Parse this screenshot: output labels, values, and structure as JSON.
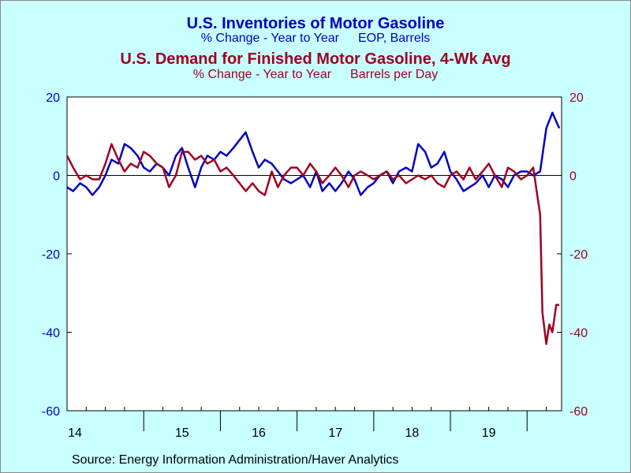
{
  "colors": {
    "background": "#C8FFFF",
    "plot_background": "#FFFFFF",
    "inventories": "#0000C0",
    "demand": "#A00020",
    "text": "#000000"
  },
  "titles": {
    "inventories_title": "U.S. Inventories of Motor Gasoline",
    "inventories_subtitle_a": "% Change - Year to Year",
    "inventories_subtitle_b": "EOP,  Barrels",
    "demand_title": "U.S. Demand for Finished Motor Gasoline, 4-Wk Avg",
    "demand_subtitle_a": "% Change - Year to Year",
    "demand_subtitle_b": "Barrels per Day"
  },
  "source": "Source:  Energy Information Administration/Haver Analytics",
  "chart_data": {
    "type": "line",
    "x_unit": "year",
    "xlim": [
      2014.0,
      2020.45
    ],
    "x_tick_labels": [
      "14",
      "15",
      "16",
      "17",
      "18",
      "19"
    ],
    "left_axis": {
      "ylim": [
        -60,
        20
      ],
      "ticks": [
        20,
        0,
        -20,
        -40,
        -60
      ],
      "tick_labels": [
        "20",
        "0",
        "-20",
        "-40",
        "-60"
      ]
    },
    "right_axis": {
      "ylim": [
        -60,
        20
      ],
      "ticks": [
        20,
        0,
        -20,
        -40,
        -60
      ],
      "tick_labels": [
        "20",
        "0",
        "-20",
        "-40",
        "-60"
      ]
    },
    "zero_line": true,
    "grid": false,
    "series": [
      {
        "axis": "left",
        "x": [
          2014.0,
          2014.08,
          2014.17,
          2014.25,
          2014.33,
          2014.42,
          2014.5,
          2014.58,
          2014.67,
          2014.75,
          2014.83,
          2014.92,
          2015.0,
          2015.08,
          2015.17,
          2015.25,
          2015.33,
          2015.42,
          2015.5,
          2015.58,
          2015.67,
          2015.75,
          2015.83,
          2015.92,
          2016.0,
          2016.08,
          2016.17,
          2016.25,
          2016.33,
          2016.42,
          2016.5,
          2016.58,
          2016.67,
          2016.75,
          2016.83,
          2016.92,
          2017.0,
          2017.08,
          2017.17,
          2017.25,
          2017.33,
          2017.42,
          2017.5,
          2017.58,
          2017.67,
          2017.75,
          2017.83,
          2017.92,
          2018.0,
          2018.08,
          2018.17,
          2018.25,
          2018.33,
          2018.42,
          2018.5,
          2018.58,
          2018.67,
          2018.75,
          2018.83,
          2018.92,
          2019.0,
          2019.08,
          2019.17,
          2019.25,
          2019.33,
          2019.42,
          2019.5,
          2019.58,
          2019.67,
          2019.75,
          2019.83,
          2019.92,
          2020.0,
          2020.08,
          2020.17,
          2020.25,
          2020.33,
          2020.42
        ],
        "values": [
          -3,
          -4,
          -2,
          -3,
          -5,
          -3,
          0,
          4,
          3,
          8,
          7,
          5,
          2,
          1,
          3,
          2,
          0,
          5,
          7,
          2,
          -3,
          2,
          5,
          4,
          6,
          5,
          7,
          9,
          11,
          6,
          2,
          4,
          3,
          1,
          -1,
          -2,
          -1,
          0,
          -3,
          1,
          -4,
          -2,
          -4,
          -2,
          1,
          -1,
          -5,
          -3,
          -2,
          0,
          1,
          -2,
          1,
          2,
          1,
          8,
          6,
          2,
          3,
          6,
          1,
          -1,
          -4,
          -3,
          -2,
          0,
          -3,
          0,
          -1,
          -3,
          0,
          1,
          1,
          0,
          1,
          12,
          16,
          12
        ]
      },
      {
        "axis": "right",
        "x": [
          2014.0,
          2014.08,
          2014.17,
          2014.25,
          2014.33,
          2014.42,
          2014.5,
          2014.58,
          2014.67,
          2014.75,
          2014.83,
          2014.92,
          2015.0,
          2015.08,
          2015.17,
          2015.25,
          2015.33,
          2015.42,
          2015.5,
          2015.58,
          2015.67,
          2015.75,
          2015.83,
          2015.92,
          2016.0,
          2016.08,
          2016.17,
          2016.25,
          2016.33,
          2016.42,
          2016.5,
          2016.58,
          2016.67,
          2016.75,
          2016.83,
          2016.92,
          2017.0,
          2017.08,
          2017.17,
          2017.25,
          2017.33,
          2017.42,
          2017.5,
          2017.58,
          2017.67,
          2017.75,
          2017.83,
          2017.92,
          2018.0,
          2018.08,
          2018.17,
          2018.25,
          2018.33,
          2018.42,
          2018.5,
          2018.58,
          2018.67,
          2018.75,
          2018.83,
          2018.92,
          2019.0,
          2019.08,
          2019.17,
          2019.25,
          2019.33,
          2019.42,
          2019.5,
          2019.58,
          2019.67,
          2019.75,
          2019.83,
          2019.92,
          2020.0,
          2020.08,
          2020.17,
          2020.2,
          2020.25,
          2020.29,
          2020.33,
          2020.38,
          2020.42
        ],
        "values": [
          5,
          2,
          -1,
          0,
          -1,
          -1,
          3,
          8,
          4,
          1,
          3,
          2,
          6,
          5,
          3,
          2,
          -3,
          0,
          6,
          6,
          4,
          5,
          3,
          4,
          1,
          2,
          0,
          -2,
          -4,
          -2,
          -4,
          -5,
          1,
          -3,
          0,
          2,
          2,
          0,
          3,
          1,
          -2,
          0,
          2,
          0,
          -3,
          0,
          1,
          0,
          -1,
          0,
          1,
          -1,
          0,
          -2,
          -1,
          0,
          -1,
          0,
          -2,
          -3,
          0,
          1,
          -1,
          2,
          -1,
          1,
          3,
          0,
          -3,
          2,
          1,
          -1,
          0,
          2,
          -10,
          -35,
          -43,
          -38,
          -40,
          -33,
          -33
        ]
      }
    ]
  }
}
